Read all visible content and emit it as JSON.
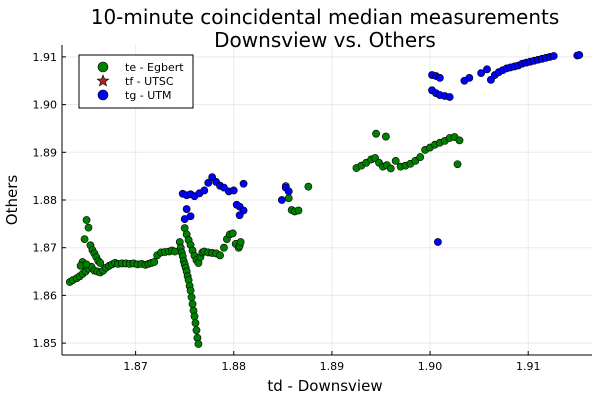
{
  "chart_data": {
    "type": "scatter",
    "title_lines": [
      "10-minute coincidental median measurements",
      "Downsview vs. Others"
    ],
    "xlabel": "td - Downsview",
    "ylabel": "Others",
    "xlim": [
      1.8625,
      1.9165
    ],
    "ylim": [
      1.8475,
      1.9125
    ],
    "x_ticks": [
      1.87,
      1.88,
      1.89,
      1.9,
      1.91
    ],
    "x_tick_labels": [
      "1.87",
      "1.88",
      "1.89",
      "1.90",
      "1.91"
    ],
    "y_ticks": [
      1.85,
      1.86,
      1.87,
      1.88,
      1.89,
      1.9,
      1.91
    ],
    "y_tick_labels": [
      "1.85",
      "1.86",
      "1.87",
      "1.88",
      "1.89",
      "1.90",
      "1.91"
    ],
    "grid": true,
    "legend_position": "top-left",
    "series": [
      {
        "name": "te - Egbert",
        "marker": "circle",
        "color": "#008000",
        "points": [
          [
            1.8633,
            1.8628
          ],
          [
            1.8636,
            1.8632
          ],
          [
            1.864,
            1.8636
          ],
          [
            1.8643,
            1.864
          ],
          [
            1.8646,
            1.8645
          ],
          [
            1.8649,
            1.865
          ],
          [
            1.8652,
            1.8656
          ],
          [
            1.8655,
            1.866
          ],
          [
            1.8658,
            1.8652
          ],
          [
            1.8661,
            1.865
          ],
          [
            1.8664,
            1.8648
          ],
          [
            1.8667,
            1.8652
          ],
          [
            1.867,
            1.8658
          ],
          [
            1.8673,
            1.8662
          ],
          [
            1.8676,
            1.8665
          ],
          [
            1.8679,
            1.8668
          ],
          [
            1.8682,
            1.8666
          ],
          [
            1.8686,
            1.8667
          ],
          [
            1.869,
            1.8667
          ],
          [
            1.8694,
            1.8666
          ],
          [
            1.8698,
            1.8667
          ],
          [
            1.8702,
            1.8665
          ],
          [
            1.8706,
            1.8666
          ],
          [
            1.871,
            1.8664
          ],
          [
            1.8713,
            1.8666
          ],
          [
            1.8716,
            1.8668
          ],
          [
            1.8719,
            1.867
          ],
          [
            1.8722,
            1.8684
          ],
          [
            1.8726,
            1.869
          ],
          [
            1.873,
            1.8691
          ],
          [
            1.8734,
            1.8692
          ],
          [
            1.8737,
            1.8694
          ],
          [
            1.874,
            1.8692
          ],
          [
            1.865,
            1.8758
          ],
          [
            1.8652,
            1.8742
          ],
          [
            1.8648,
            1.8718
          ],
          [
            1.8654,
            1.8705
          ],
          [
            1.8656,
            1.8695
          ],
          [
            1.8658,
            1.8688
          ],
          [
            1.866,
            1.868
          ],
          [
            1.8646,
            1.867
          ],
          [
            1.8644,
            1.8662
          ],
          [
            1.865,
            1.8665
          ],
          [
            1.8662,
            1.8672
          ],
          [
            1.8664,
            1.8668
          ],
          [
            1.8745,
            1.8712
          ],
          [
            1.8746,
            1.87
          ],
          [
            1.8747,
            1.869
          ],
          [
            1.8748,
            1.8682
          ],
          [
            1.8749,
            1.8672
          ],
          [
            1.875,
            1.8665
          ],
          [
            1.8751,
            1.8658
          ],
          [
            1.8752,
            1.865
          ],
          [
            1.8753,
            1.864
          ],
          [
            1.8754,
            1.8632
          ],
          [
            1.8755,
            1.862
          ],
          [
            1.8756,
            1.861
          ],
          [
            1.8757,
            1.8596
          ],
          [
            1.8758,
            1.8582
          ],
          [
            1.8759,
            1.8568
          ],
          [
            1.876,
            1.8556
          ],
          [
            1.8761,
            1.8542
          ],
          [
            1.8762,
            1.8527
          ],
          [
            1.8763,
            1.8511
          ],
          [
            1.8764,
            1.8498
          ],
          [
            1.875,
            1.8741
          ],
          [
            1.8752,
            1.8728
          ],
          [
            1.8754,
            1.8716
          ],
          [
            1.8756,
            1.8706
          ],
          [
            1.8758,
            1.8694
          ],
          [
            1.876,
            1.8683
          ],
          [
            1.8762,
            1.8674
          ],
          [
            1.8764,
            1.8668
          ],
          [
            1.8766,
            1.868
          ],
          [
            1.8768,
            1.869
          ],
          [
            1.877,
            1.8692
          ],
          [
            1.8774,
            1.869
          ],
          [
            1.8778,
            1.8689
          ],
          [
            1.8782,
            1.8688
          ],
          [
            1.8786,
            1.8684
          ],
          [
            1.879,
            1.87
          ],
          [
            1.8793,
            1.8718
          ],
          [
            1.8796,
            1.8728
          ],
          [
            1.8799,
            1.873
          ],
          [
            1.8802,
            1.8708
          ],
          [
            1.8805,
            1.87
          ],
          [
            1.8806,
            1.8704
          ],
          [
            1.8807,
            1.8712
          ],
          [
            1.8853,
            1.8829
          ],
          [
            1.8856,
            1.8804
          ],
          [
            1.8859,
            1.8779
          ],
          [
            1.8862,
            1.8776
          ],
          [
            1.8866,
            1.8778
          ],
          [
            1.8876,
            1.8828
          ],
          [
            1.8925,
            1.8867
          ],
          [
            1.893,
            1.8872
          ],
          [
            1.8935,
            1.8878
          ],
          [
            1.894,
            1.8885
          ],
          [
            1.8944,
            1.8888
          ],
          [
            1.8948,
            1.8878
          ],
          [
            1.8952,
            1.887
          ],
          [
            1.8956,
            1.8873
          ],
          [
            1.896,
            1.8866
          ],
          [
            1.8945,
            1.8939
          ],
          [
            1.8955,
            1.8933
          ],
          [
            1.8965,
            1.8882
          ],
          [
            1.897,
            1.887
          ],
          [
            1.8975,
            1.8872
          ],
          [
            1.898,
            1.8876
          ],
          [
            1.8985,
            1.8882
          ],
          [
            1.899,
            1.889
          ],
          [
            1.8995,
            1.8905
          ],
          [
            1.9,
            1.891
          ],
          [
            1.9005,
            1.8916
          ],
          [
            1.901,
            1.892
          ],
          [
            1.9015,
            1.8924
          ],
          [
            1.902,
            1.893
          ],
          [
            1.9025,
            1.8932
          ],
          [
            1.9028,
            1.8875
          ],
          [
            1.903,
            1.8925
          ]
        ]
      },
      {
        "name": "tf - UTSC",
        "marker": "star",
        "color": "#b22222",
        "points": []
      },
      {
        "name": "tg - UTM",
        "marker": "circle",
        "color": "#0000ff",
        "points": [
          [
            1.8748,
            1.8813
          ],
          [
            1.8752,
            1.881
          ],
          [
            1.8756,
            1.8812
          ],
          [
            1.876,
            1.8808
          ],
          [
            1.8752,
            1.8781
          ],
          [
            1.8756,
            1.8766
          ],
          [
            1.875,
            1.876
          ],
          [
            1.8765,
            1.8814
          ],
          [
            1.877,
            1.882
          ],
          [
            1.8774,
            1.8836
          ],
          [
            1.8778,
            1.8848
          ],
          [
            1.8782,
            1.8838
          ],
          [
            1.8786,
            1.883
          ],
          [
            1.879,
            1.8826
          ],
          [
            1.8795,
            1.8818
          ],
          [
            1.88,
            1.882
          ],
          [
            1.8803,
            1.879
          ],
          [
            1.8806,
            1.8786
          ],
          [
            1.881,
            1.8778
          ],
          [
            1.8806,
            1.8768
          ],
          [
            1.881,
            1.8834
          ],
          [
            1.8853,
            1.8826
          ],
          [
            1.8856,
            1.8818
          ],
          [
            1.8849,
            1.88
          ],
          [
            1.9002,
            1.9062
          ],
          [
            1.9006,
            1.906
          ],
          [
            1.901,
            1.9056
          ],
          [
            1.9002,
            1.903
          ],
          [
            1.9006,
            1.9024
          ],
          [
            1.901,
            1.902
          ],
          [
            1.9015,
            1.9018
          ],
          [
            1.902,
            1.9016
          ],
          [
            1.9008,
            1.8712
          ],
          [
            1.9035,
            1.905
          ],
          [
            1.904,
            1.9056
          ],
          [
            1.9052,
            1.9066
          ],
          [
            1.9058,
            1.9074
          ],
          [
            1.9062,
            1.9052
          ],
          [
            1.9066,
            1.9062
          ],
          [
            1.907,
            1.9068
          ],
          [
            1.9074,
            1.9072
          ],
          [
            1.9078,
            1.9076
          ],
          [
            1.9082,
            1.9078
          ],
          [
            1.9086,
            1.908
          ],
          [
            1.909,
            1.9082
          ],
          [
            1.9094,
            1.9086
          ],
          [
            1.9098,
            1.9088
          ],
          [
            1.9102,
            1.909
          ],
          [
            1.9106,
            1.9092
          ],
          [
            1.911,
            1.9094
          ],
          [
            1.9114,
            1.9096
          ],
          [
            1.9118,
            1.9098
          ],
          [
            1.9122,
            1.91
          ],
          [
            1.9126,
            1.9102
          ],
          [
            1.915,
            1.9103
          ],
          [
            1.9152,
            1.9104
          ]
        ]
      }
    ]
  }
}
